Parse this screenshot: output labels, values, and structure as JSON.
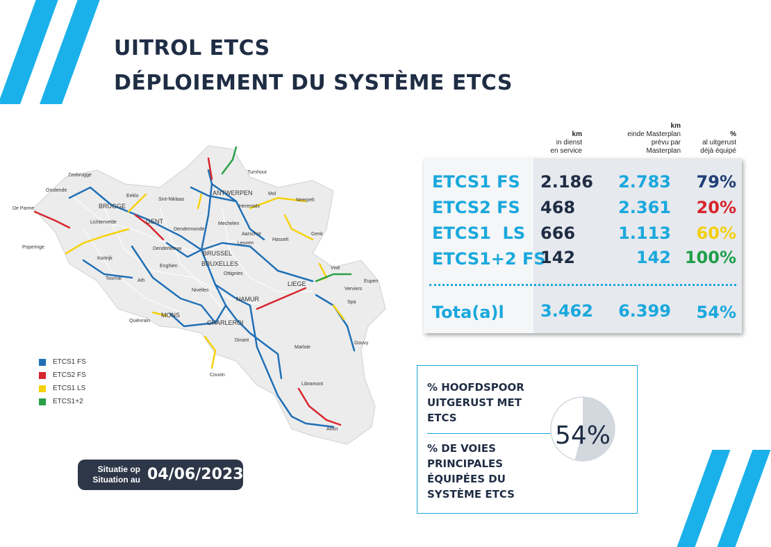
{
  "title": {
    "line1": "UITROL ETCS",
    "line2": "DÉPLOIEMENT DU SYSTÈME ETCS"
  },
  "legend": [
    {
      "label": "ETCS1 FS",
      "color": "#1f6fb5"
    },
    {
      "label": "ETCS2 FS",
      "color": "#d7262e"
    },
    {
      "label": "ETCS1 LS",
      "color": "#f5d10b"
    },
    {
      "label": "ETCS1+2",
      "color": "#2aa048"
    }
  ],
  "map_labels": {
    "zeebrugge": "Zeebrugge",
    "oostende": "Oostende",
    "depanne": "De Panne",
    "brugge": "BRUGGE",
    "eeklo": "Eeklo",
    "sintniklaas": "Sint-Niklaas",
    "antwerpen": "ANTWERPEN",
    "turnhout": "Turnhout",
    "mol": "Mol",
    "neerpelt": "Neerpelt",
    "herentals": "Herentals",
    "lichtervelde": "Lichtervelde",
    "gent": "GENT",
    "dendermonde": "Dendermonde",
    "mechelen": "Mechelen",
    "aarschot": "Aarschot",
    "genk": "Genk",
    "hasselt": "Hasselt",
    "leuven": "Leuven",
    "poperinge": "Poperinge",
    "kortrijk": "Kortrijk",
    "denderleeuw": "Denderleeuw",
    "brussel": "BRUSSEL",
    "bruxelles": "BRUXELLES",
    "enghien": "Enghien",
    "vise": "Visé",
    "tournai": "Tournai",
    "ath": "Ath",
    "ottignies": "Ottignies",
    "liege": "LIEGE",
    "verviers": "Verviers",
    "eupen": "Eupen",
    "nivelles": "Nivelles",
    "namur": "NAMUR",
    "spa": "Spa",
    "quievrain": "Quiévrain",
    "mons": "MONS",
    "charleroi": "CHARLEROI",
    "dinant": "Dinant",
    "marloie": "Marloie",
    "gouvy": "Gouvy",
    "couvin": "Couvin",
    "libramont": "Libramont",
    "arlon": "Arlon"
  },
  "date_badge": {
    "line1": "Situatie op",
    "line2": "Situation au",
    "date": "04/06/2023"
  },
  "table": {
    "headers": [
      {
        "bold": "km",
        "line2": "in dienst",
        "line3": "en service"
      },
      {
        "bold": "km",
        "line2": "einde Masterplan",
        "line3": "prévu par",
        "line4": "Masterplan"
      },
      {
        "bold": "%",
        "line2": "al uitgerust",
        "line3": "déjà équipé"
      }
    ],
    "rows": [
      {
        "label": "ETCS1 FS",
        "in_service": "2.186",
        "masterplan": "2.783",
        "pct": "79%",
        "pct_color": "#1f3f77"
      },
      {
        "label": "ETCS2 FS",
        "in_service": "468",
        "masterplan": "2.361",
        "pct": "20%",
        "pct_color": "#d7262e"
      },
      {
        "label": "ETCS1  LS",
        "in_service": "666",
        "masterplan": "1.113",
        "pct": "60%",
        "pct_color": "#f2cf12"
      },
      {
        "label": "ETCS1+2 FS",
        "in_service": "142",
        "masterplan": "142",
        "pct": "100%",
        "pct_color": "#1f9e49"
      }
    ],
    "total": {
      "label": "Tota(a)l",
      "in_service": "3.462",
      "masterplan": "6.399",
      "pct": "54%"
    }
  },
  "info": {
    "nl": [
      "% HOOFDSPOOR",
      "UITGERUST MET",
      "ETCS"
    ],
    "fr": [
      "% DE VOIES",
      "PRINCIPALES",
      "ÉQUIPÉES DU",
      "SYSTÈME ETCS"
    ],
    "percent_label": "54%",
    "percent_value": 0.54
  },
  "colors": {
    "accent": "#1ab1ea",
    "navy": "#1f2d44"
  }
}
